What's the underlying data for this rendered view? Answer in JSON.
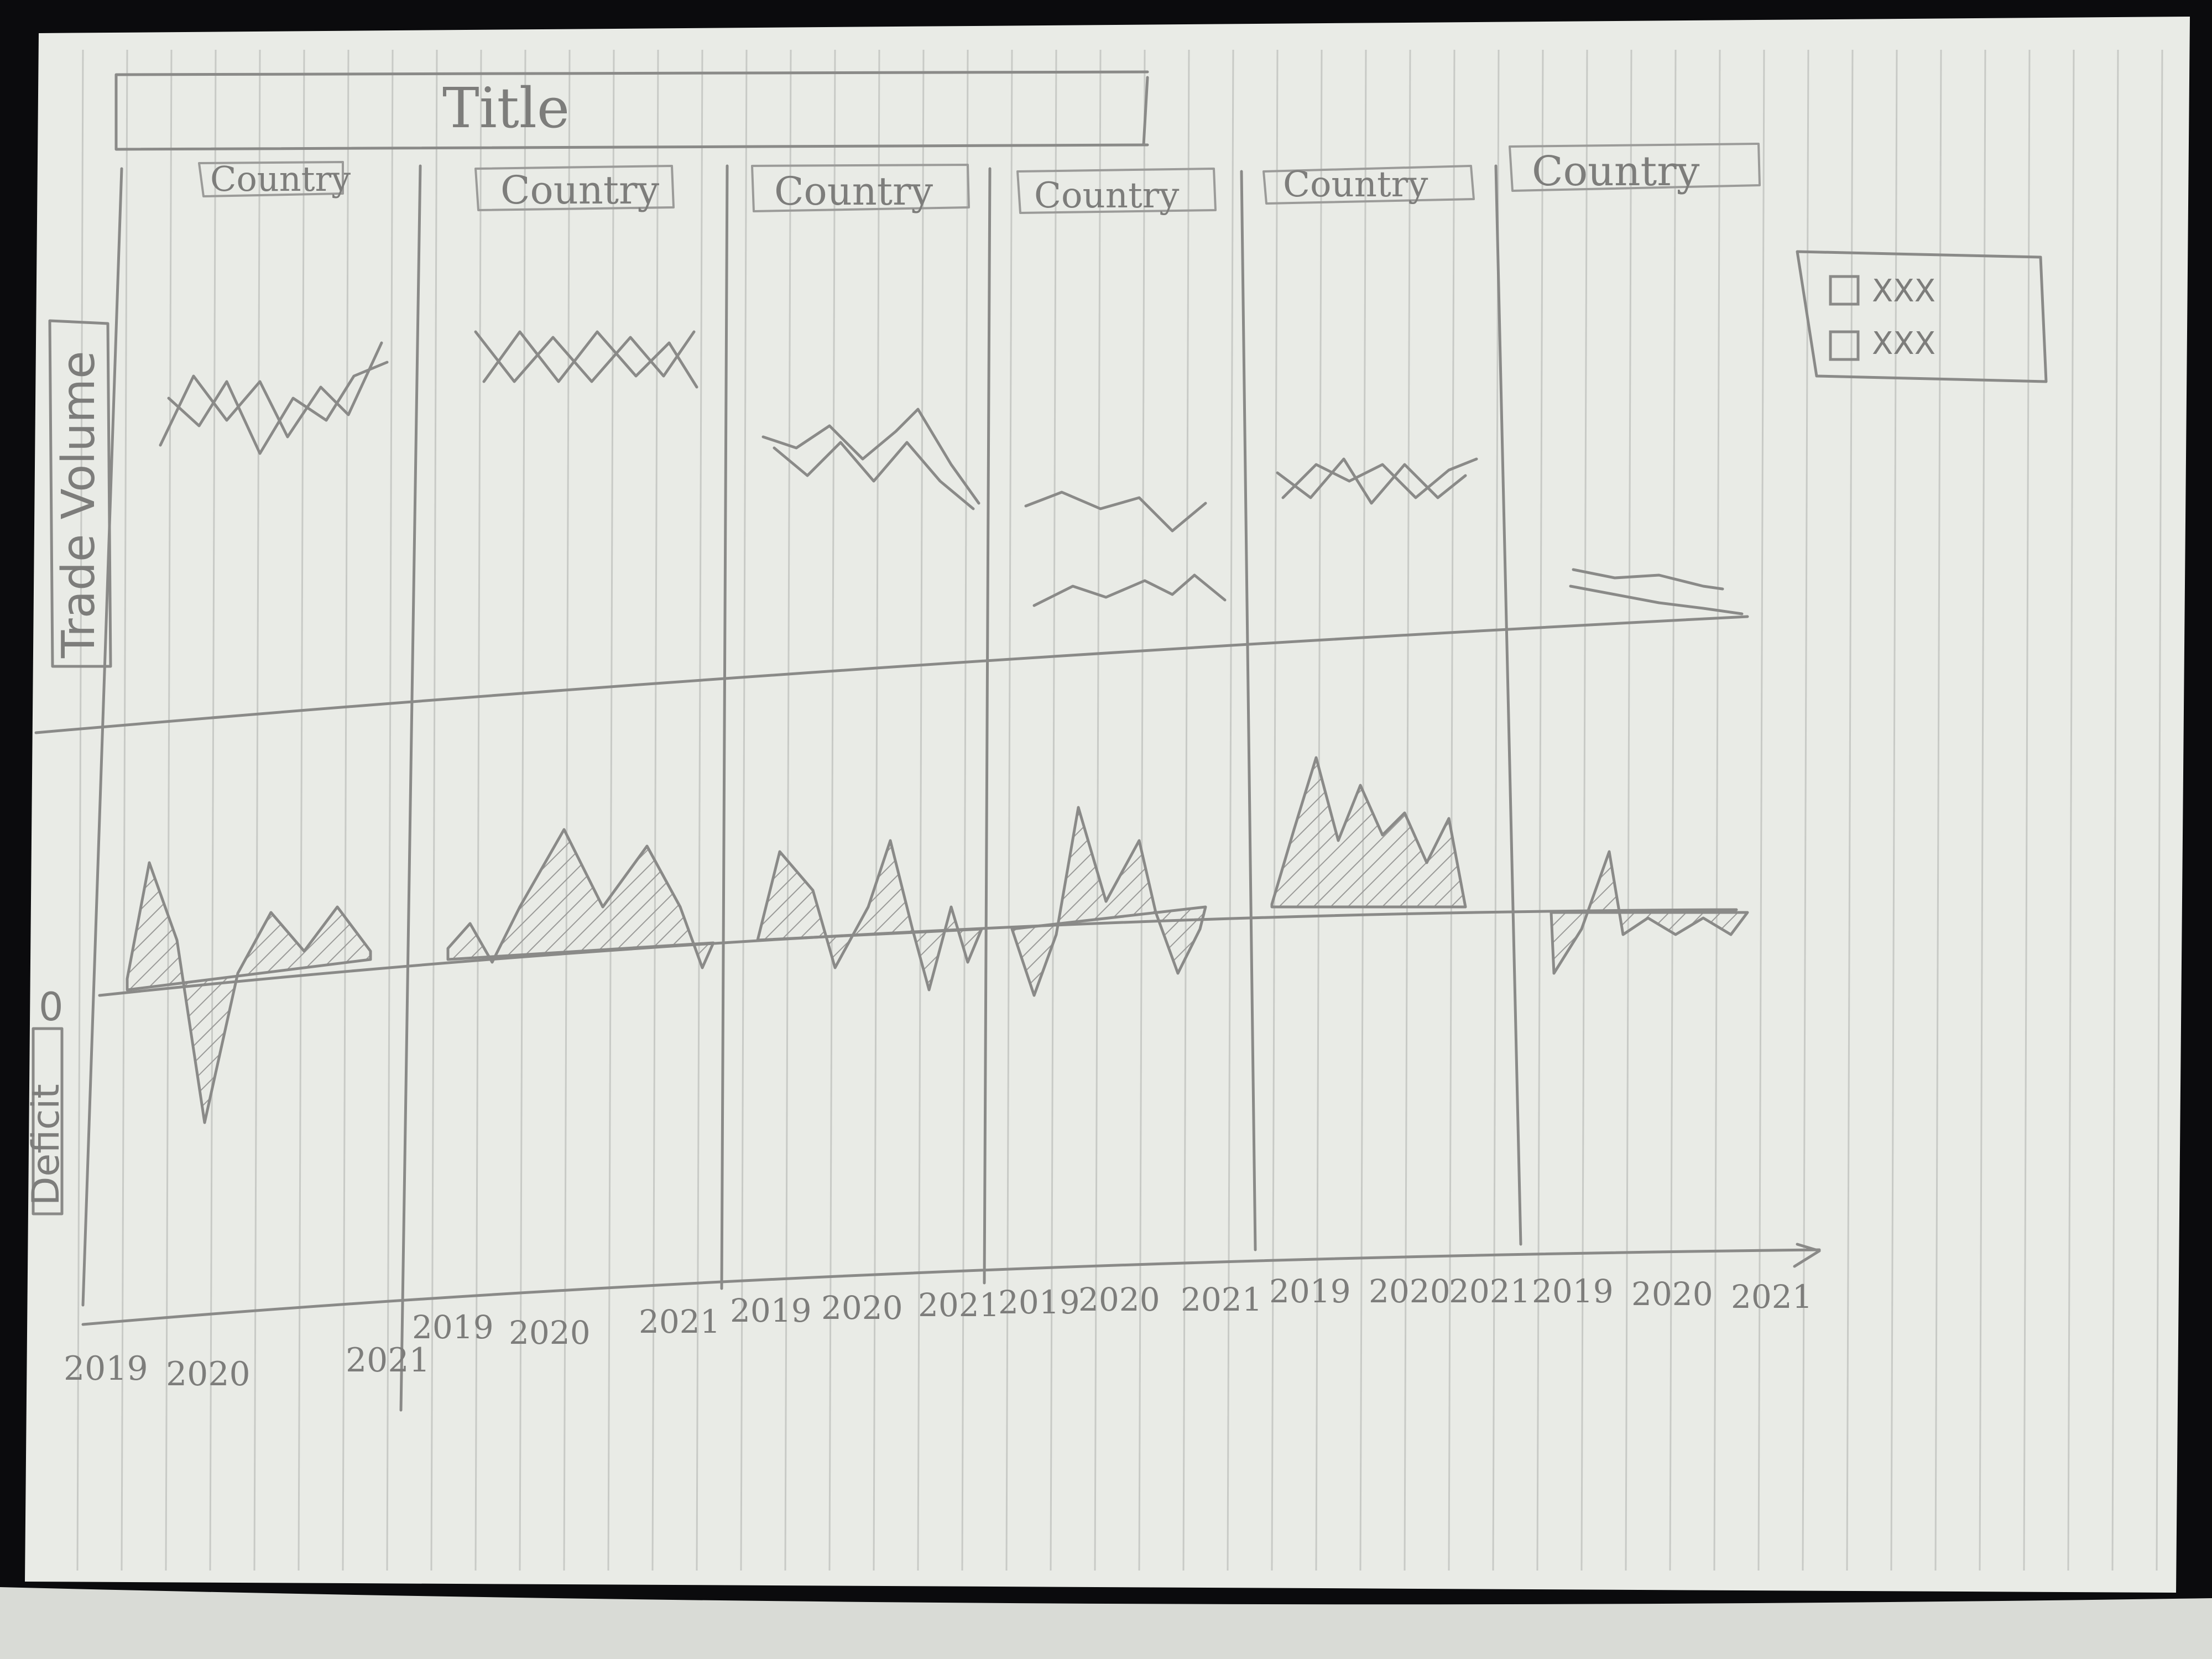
{
  "title": "Title",
  "y_axis_top_label": "Trade Volume",
  "y_axis_bottom_label": "Deficit",
  "zero_label": "0",
  "panels": [
    {
      "country_label": "Country",
      "x_ticks": [
        "2019",
        "2020",
        "2021"
      ]
    },
    {
      "country_label": "Country",
      "x_ticks": [
        "2019",
        "2020",
        "2021"
      ]
    },
    {
      "country_label": "Country",
      "x_ticks": [
        "2019",
        "2020",
        "2021"
      ]
    },
    {
      "country_label": "Country",
      "x_ticks": [
        "2019",
        "2020",
        "2021"
      ]
    },
    {
      "country_label": "Country",
      "x_ticks": [
        "2019",
        "2020",
        "2021"
      ]
    },
    {
      "country_label": "Country",
      "x_ticks": [
        "2019",
        "2020",
        "2021"
      ]
    }
  ],
  "legend": {
    "items": [
      {
        "label": "XXX"
      },
      {
        "label": "XXX"
      }
    ]
  },
  "colors": {
    "paper": "#e9ebe6",
    "pencil": "#8a8a88",
    "rule_line": "#c8cac6",
    "background": "#0b0b0d"
  }
}
